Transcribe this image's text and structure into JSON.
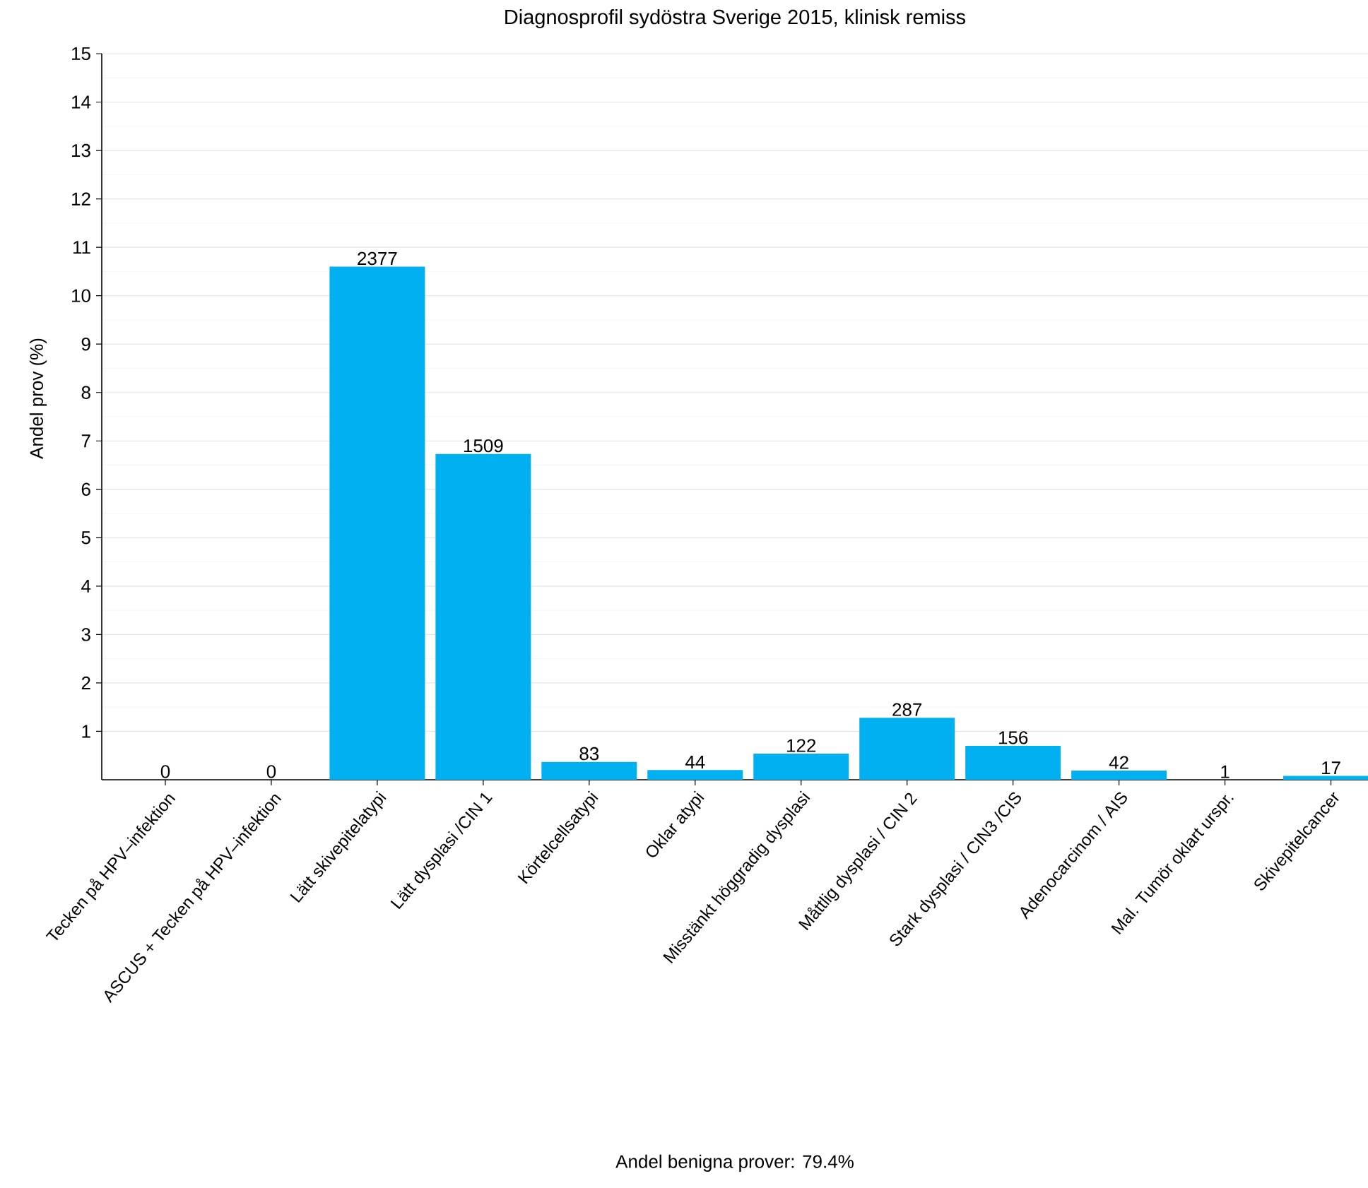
{
  "chart_data": {
    "type": "bar",
    "title": "Diagnosprofil sydöstra Sverige 2015, klinisk remiss",
    "ylabel": "Andel prov (%)",
    "categories": [
      "Tecken på HPV–infektion",
      "ASCUS + Tecken på HPV–infektion",
      "Lätt skivepitelatypi",
      "Lätt dysplasi /CIN 1",
      "Körtelcellsatypi",
      "Oklar atypi",
      "Misstänkt höggradig dysplasi",
      "Måttlig dysplasi / CIN 2",
      "Stark dysplasi / CIN3 /CIS",
      "Adenocarcinom / AIS",
      "Mal. Tumör oklart urspr.",
      "Skivepitelcancer"
    ],
    "values": [
      0,
      0,
      10.6,
      6.73,
      0.37,
      0.2,
      0.54,
      1.28,
      0.7,
      0.19,
      0,
      0.08
    ],
    "color": "#00b0f0",
    "ylim": [
      0,
      15
    ],
    "yticks": [
      1,
      2,
      3,
      4,
      5,
      6,
      7,
      8,
      9,
      10,
      11,
      12,
      13,
      14,
      15
    ],
    "grid": "y",
    "annotations": [
      {
        "text": "0",
        "x": "Tecken på HPV–infektion",
        "y": 0
      },
      {
        "text": "0",
        "x": "ASCUS + Tecken på HPV–infektion",
        "y": 0
      },
      {
        "text": "2377",
        "x": "Lätt skivepitelatypi",
        "y": 10.6
      },
      {
        "text": "1509",
        "x": "Lätt dysplasi /CIN 1",
        "y": 6.73
      },
      {
        "text": "83",
        "x": "Körtelcellsatypi",
        "y": 0.37
      },
      {
        "text": "44",
        "x": "Oklar atypi",
        "y": 0.2
      },
      {
        "text": "122",
        "x": "Misstänkt höggradig dysplasi",
        "y": 0.54
      },
      {
        "text": "287",
        "x": "Måttlig dysplasi / CIN 2",
        "y": 1.28
      },
      {
        "text": "156",
        "x": "Stark dysplasi / CIN3 /CIS",
        "y": 0.7
      },
      {
        "text": "42",
        "x": "Adenocarcinom / AIS",
        "y": 0.19
      },
      {
        "text": "1",
        "x": "Mal. Tumör oklart urspr.",
        "y": 0
      },
      {
        "text": "17",
        "x": "Skivepitelcancer",
        "y": 0.08
      },
      "Andel benigna prover: 79.4%"
    ]
  }
}
